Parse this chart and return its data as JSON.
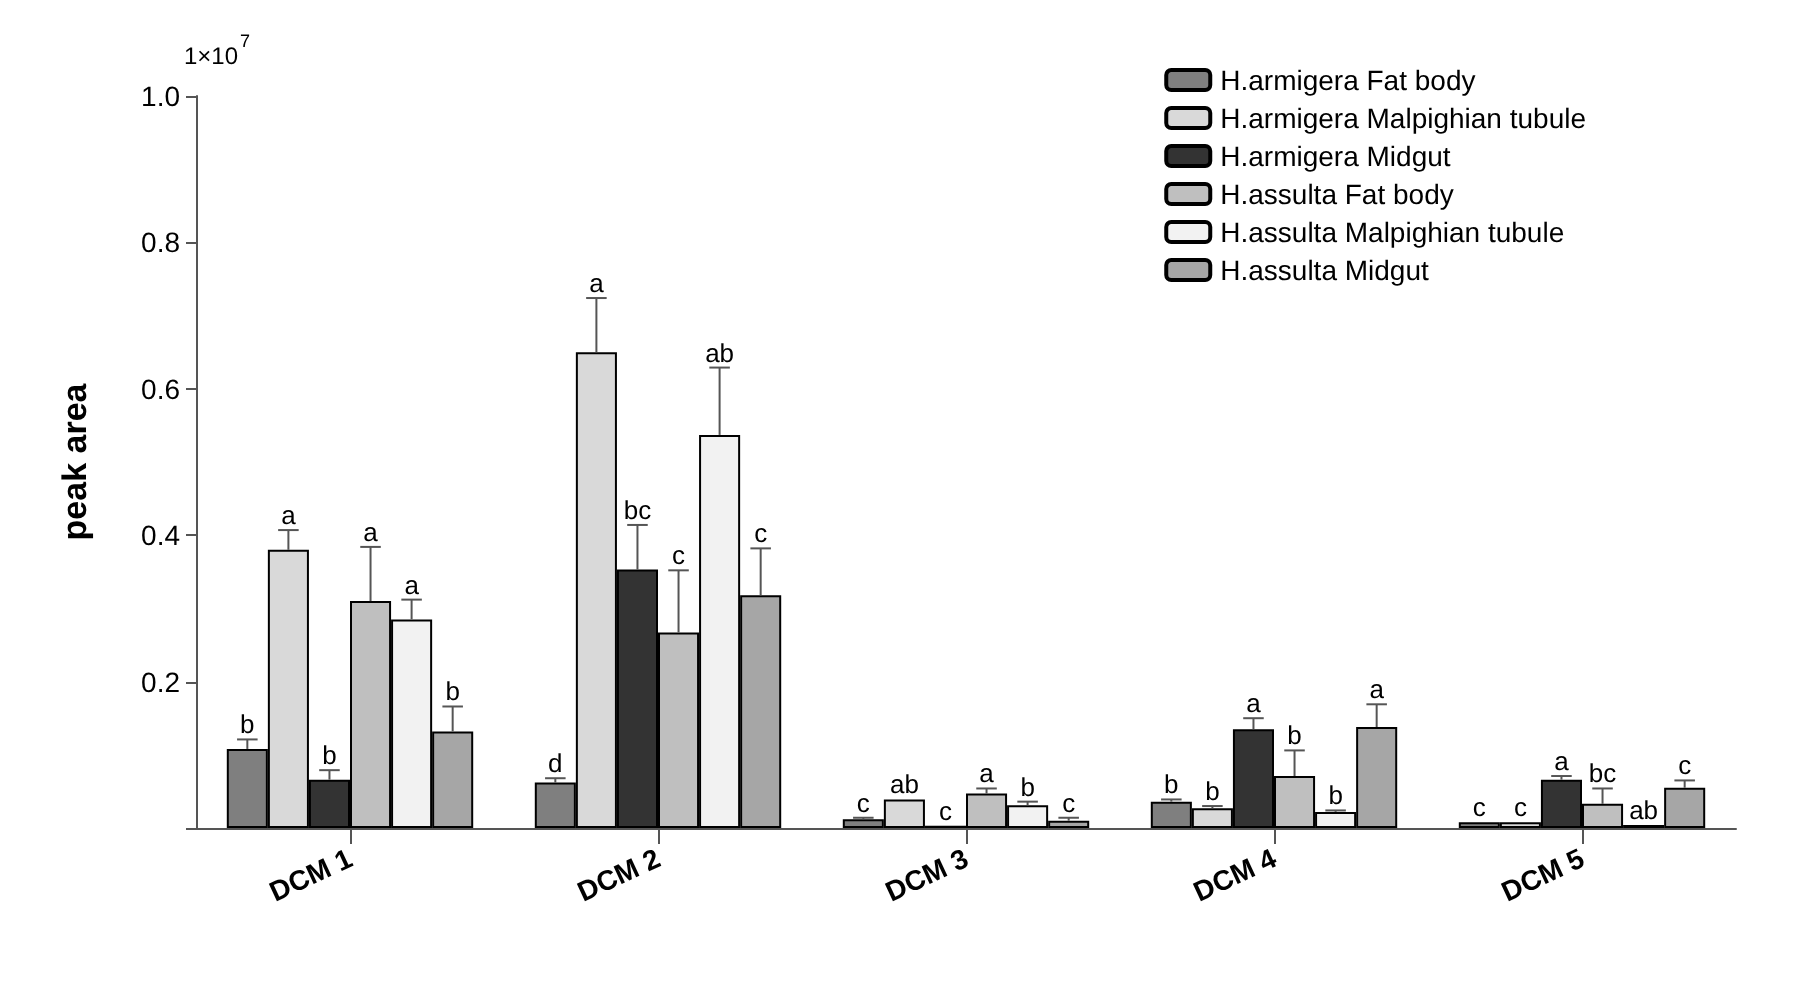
{
  "chart_data": {
    "type": "bar",
    "ylabel": "peak area",
    "annotations": [
      "1×10$^{7}$"
    ],
    "categories": [
      "DCM 1",
      "DCM 2",
      "DCM 3",
      "DCM 4",
      "DCM 5"
    ],
    "ylim": [
      0,
      1.0
    ],
    "yticks": [
      {
        "value": 0,
        "label": null
      },
      0.2,
      0.4,
      0.6,
      0.8,
      {
        "value": 1.0,
        "label": "1.0"
      }
    ],
    "grid": false,
    "legend": "top right",
    "series": [
      {
        "name": "H.armigera Fat body",
        "color": "#7f7f7f",
        "values": [
          0.108,
          0.062,
          0.012,
          0.036,
          0.008
        ],
        "errors": [
          [
            0.108,
            0.121
          ],
          [
            0.062,
            0.068
          ],
          [
            0.012,
            0.014
          ],
          [
            0.036,
            0.039
          ],
          null
        ],
        "value_labels": [
          "b",
          "d",
          "c",
          "b",
          "c"
        ]
      },
      {
        "name": "H.armigera Malpighian tubule",
        "color": "#d9d9d9",
        "values": [
          0.38,
          0.65,
          0.039,
          0.027,
          0.008
        ],
        "errors": [
          [
            0.38,
            0.407
          ],
          [
            0.65,
            0.724
          ],
          null,
          [
            0.027,
            0.03
          ],
          null
        ],
        "value_labels": [
          "a",
          "a",
          "ab",
          "b",
          "c"
        ]
      },
      {
        "name": "H.armigera Midgut",
        "color": "#333333",
        "values": [
          0.066,
          0.353,
          0.003,
          0.135,
          0.066
        ],
        "errors": [
          [
            0.066,
            0.079
          ],
          [
            0.353,
            0.414
          ],
          null,
          [
            0.135,
            0.15
          ],
          [
            0.066,
            0.071
          ]
        ],
        "value_labels": [
          "b",
          "bc",
          "c",
          "a",
          "a"
        ]
      },
      {
        "name": "H.assulta Fat body",
        "color": "#bfbfbf",
        "values": [
          0.31,
          0.267,
          0.047,
          0.071,
          0.033
        ],
        "errors": [
          [
            0.31,
            0.384
          ],
          [
            0.267,
            0.352
          ],
          [
            0.047,
            0.054
          ],
          [
            0.071,
            0.106
          ],
          [
            0.033,
            0.054
          ]
        ],
        "value_labels": [
          "a",
          "c",
          "a",
          "b",
          "bc"
        ]
      },
      {
        "name": "H.assulta Malpighian tubule",
        "color": "#f2f2f2",
        "values": [
          0.285,
          0.537,
          0.031,
          0.022,
          0.004
        ],
        "errors": [
          [
            0.285,
            0.312
          ],
          [
            0.537,
            0.629
          ],
          [
            0.031,
            0.036
          ],
          [
            0.022,
            0.024
          ],
          null
        ],
        "value_labels": [
          "a",
          "ab",
          "b",
          "b",
          "ab"
        ]
      },
      {
        "name": "H.assulta Midgut",
        "color": "#a6a6a6",
        "values": [
          0.132,
          0.318,
          0.01,
          0.138,
          0.055
        ],
        "errors": [
          [
            0.132,
            0.166
          ],
          [
            0.318,
            0.382
          ],
          [
            0.01,
            0.014
          ],
          [
            0.138,
            0.169
          ],
          [
            0.055,
            0.065
          ]
        ],
        "value_labels": [
          "b",
          "c",
          "c",
          "a",
          "c"
        ]
      }
    ]
  }
}
